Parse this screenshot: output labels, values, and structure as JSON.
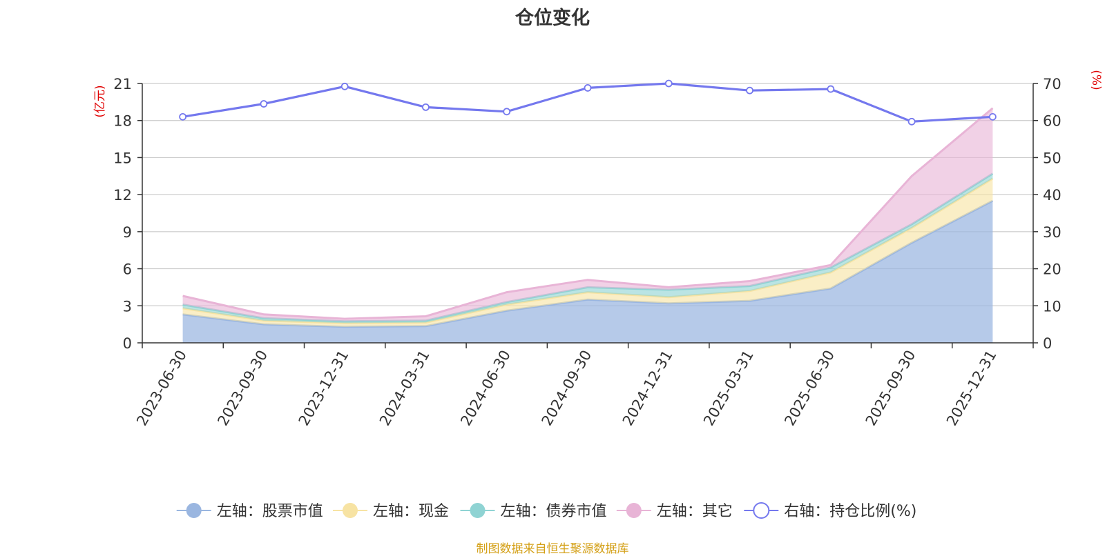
{
  "source_note": "制图数据来自恒生聚源数据库",
  "chart_data": {
    "type": "area",
    "title": "仓位变化",
    "stacked": true,
    "categories": [
      "2023-06-30",
      "2023-09-30",
      "2023-12-31",
      "2024-03-31",
      "2024-06-30",
      "2024-09-30",
      "2024-12-31",
      "2025-03-31",
      "2025-06-30",
      "2025-09-30",
      "2025-12-31"
    ],
    "left_axis": {
      "label": "(亿元)",
      "min": 0,
      "max": 21,
      "ticks": [
        0,
        3,
        6,
        9,
        12,
        15,
        18,
        21
      ]
    },
    "right_axis": {
      "label": "(%)",
      "min": 0,
      "max": 70,
      "ticks": [
        0,
        10,
        20,
        30,
        40,
        50,
        60,
        70
      ]
    },
    "series": [
      {
        "name": "左轴：股票市值",
        "axis": "left",
        "color": "#9ab6e0",
        "values": [
          2.3,
          1.5,
          1.3,
          1.35,
          2.6,
          3.5,
          3.2,
          3.4,
          4.4,
          8.1,
          11.5
        ]
      },
      {
        "name": "左轴：现金",
        "axis": "left",
        "color": "#f7e3a3",
        "values": [
          0.5,
          0.3,
          0.3,
          0.3,
          0.5,
          0.6,
          0.5,
          0.8,
          1.3,
          1.2,
          1.8
        ]
      },
      {
        "name": "左轴：债券市值",
        "axis": "left",
        "color": "#8fd3d3",
        "values": [
          0.3,
          0.2,
          0.15,
          0.15,
          0.2,
          0.4,
          0.6,
          0.4,
          0.4,
          0.3,
          0.4
        ]
      },
      {
        "name": "左轴：其它",
        "axis": "left",
        "color": "#e8b4d6",
        "values": [
          0.7,
          0.3,
          0.2,
          0.35,
          0.8,
          0.6,
          0.2,
          0.4,
          0.2,
          3.9,
          5.3
        ]
      },
      {
        "name": "右轴：持仓比例(%)",
        "axis": "right",
        "type": "line",
        "color": "#7478ee",
        "values": [
          61.0,
          64.5,
          69.2,
          63.6,
          62.4,
          68.8,
          70.0,
          68.1,
          68.5,
          59.7,
          61.0
        ]
      }
    ]
  }
}
